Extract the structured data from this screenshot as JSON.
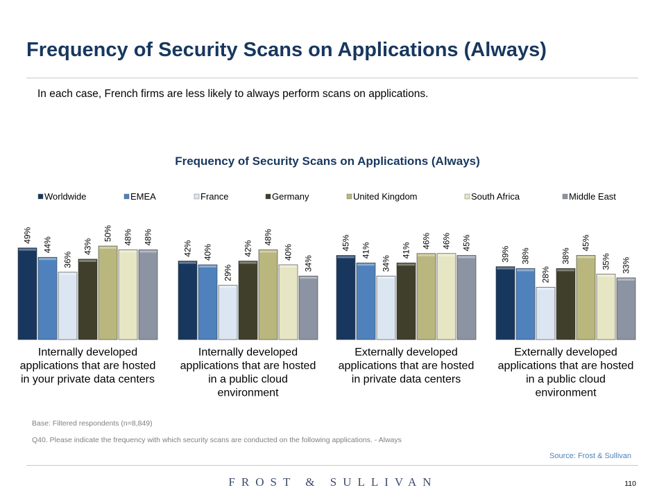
{
  "page": {
    "title": "Frequency of Security Scans on Applications (Always)",
    "subtitle": "In each case, French firms are less likely to always perform scans on applications.",
    "base_note": "Base: Filtered respondents (n=8,849)",
    "question_note": "Q40. Please indicate the frequency with which security scans are conducted on the following applications. - Always",
    "source": "Source: Frost & Sullivan",
    "logo": "FROST & SULLIVAN",
    "page_number": "110"
  },
  "colors": {
    "title": "#17375e",
    "source": "#4f81bd",
    "series": [
      "#17375e",
      "#4f81bd",
      "#dce6f2",
      "#3f3f2b",
      "#b9b77e",
      "#e6e5c4",
      "#8c94a3"
    ]
  },
  "chart_data": {
    "type": "bar",
    "title": "Frequency of Security Scans on Applications (Always)",
    "categories": [
      "Internally developed applications that are hosted in your private data centers",
      "Internally developed applications that are hosted in a public cloud environment",
      "Externally developed applications that are hosted in private data centers",
      "Externally developed applications that are hosted in a public cloud environment"
    ],
    "category_lines": [
      [
        "Internally developed",
        "applications that are hosted",
        "in your private data centers"
      ],
      [
        "Internally developed",
        "applications that are hosted",
        "in a public cloud",
        "environment"
      ],
      [
        "Externally developed",
        "applications that are hosted",
        "in private data centers"
      ],
      [
        "Externally developed",
        "applications that are hosted",
        "in a public cloud",
        "environment"
      ]
    ],
    "series": [
      {
        "name": "Worldwide",
        "values": [
          49,
          42,
          45,
          39
        ]
      },
      {
        "name": "EMEA",
        "values": [
          44,
          40,
          41,
          38
        ]
      },
      {
        "name": "France",
        "values": [
          36,
          29,
          34,
          28
        ]
      },
      {
        "name": "Germany",
        "values": [
          43,
          42,
          41,
          38
        ]
      },
      {
        "name": "United Kingdom",
        "values": [
          50,
          48,
          46,
          45
        ]
      },
      {
        "name": "South Africa",
        "values": [
          48,
          40,
          46,
          35
        ]
      },
      {
        "name": "Middle East",
        "values": [
          48,
          34,
          45,
          33
        ]
      }
    ],
    "unit": "%",
    "legend_position": "top",
    "grid": false,
    "ylim": [
      0,
      100
    ]
  }
}
